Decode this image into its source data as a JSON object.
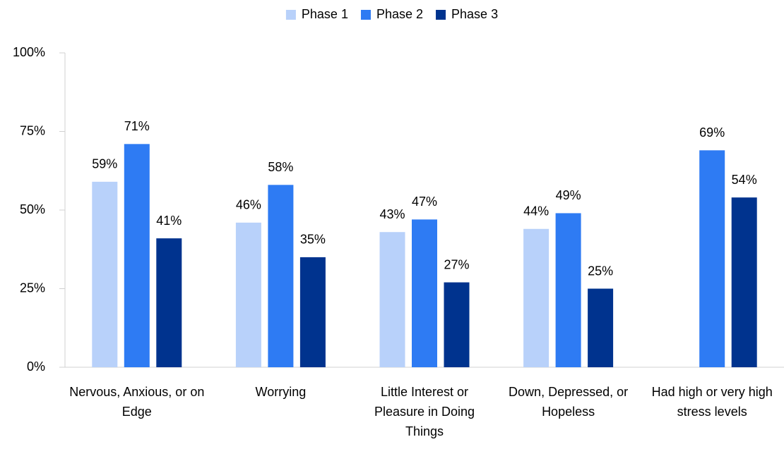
{
  "chart_data": {
    "type": "bar",
    "categories": [
      "Nervous, Anxious, or on Edge",
      "Worrying",
      "Little Interest or Pleasure in Doing Things",
      "Down, Depressed, or Hopeless",
      "Had high or very high stress levels"
    ],
    "series": [
      {
        "name": "Phase 1",
        "color": "#b8d1fa",
        "values": [
          59,
          46,
          43,
          44,
          null
        ],
        "value_labels": [
          "59%",
          "46%",
          "43%",
          "44%",
          null
        ]
      },
      {
        "name": "Phase 2",
        "color": "#2e7bf3",
        "values": [
          71,
          58,
          47,
          49,
          69
        ],
        "value_labels": [
          "71%",
          "58%",
          "47%",
          "49%",
          "69%"
        ]
      },
      {
        "name": "Phase 3",
        "color": "#00338e",
        "values": [
          41,
          35,
          27,
          25,
          54
        ],
        "value_labels": [
          "41%",
          "35%",
          "27%",
          "25%",
          "54%"
        ]
      }
    ],
    "ylim": [
      0,
      100
    ],
    "yticks": [
      {
        "value": 0,
        "label": "0%"
      },
      {
        "value": 25,
        "label": "25%"
      },
      {
        "value": 50,
        "label": "50%"
      },
      {
        "value": 75,
        "label": "75%"
      },
      {
        "value": 100,
        "label": "100%"
      }
    ],
    "legend": "top"
  }
}
